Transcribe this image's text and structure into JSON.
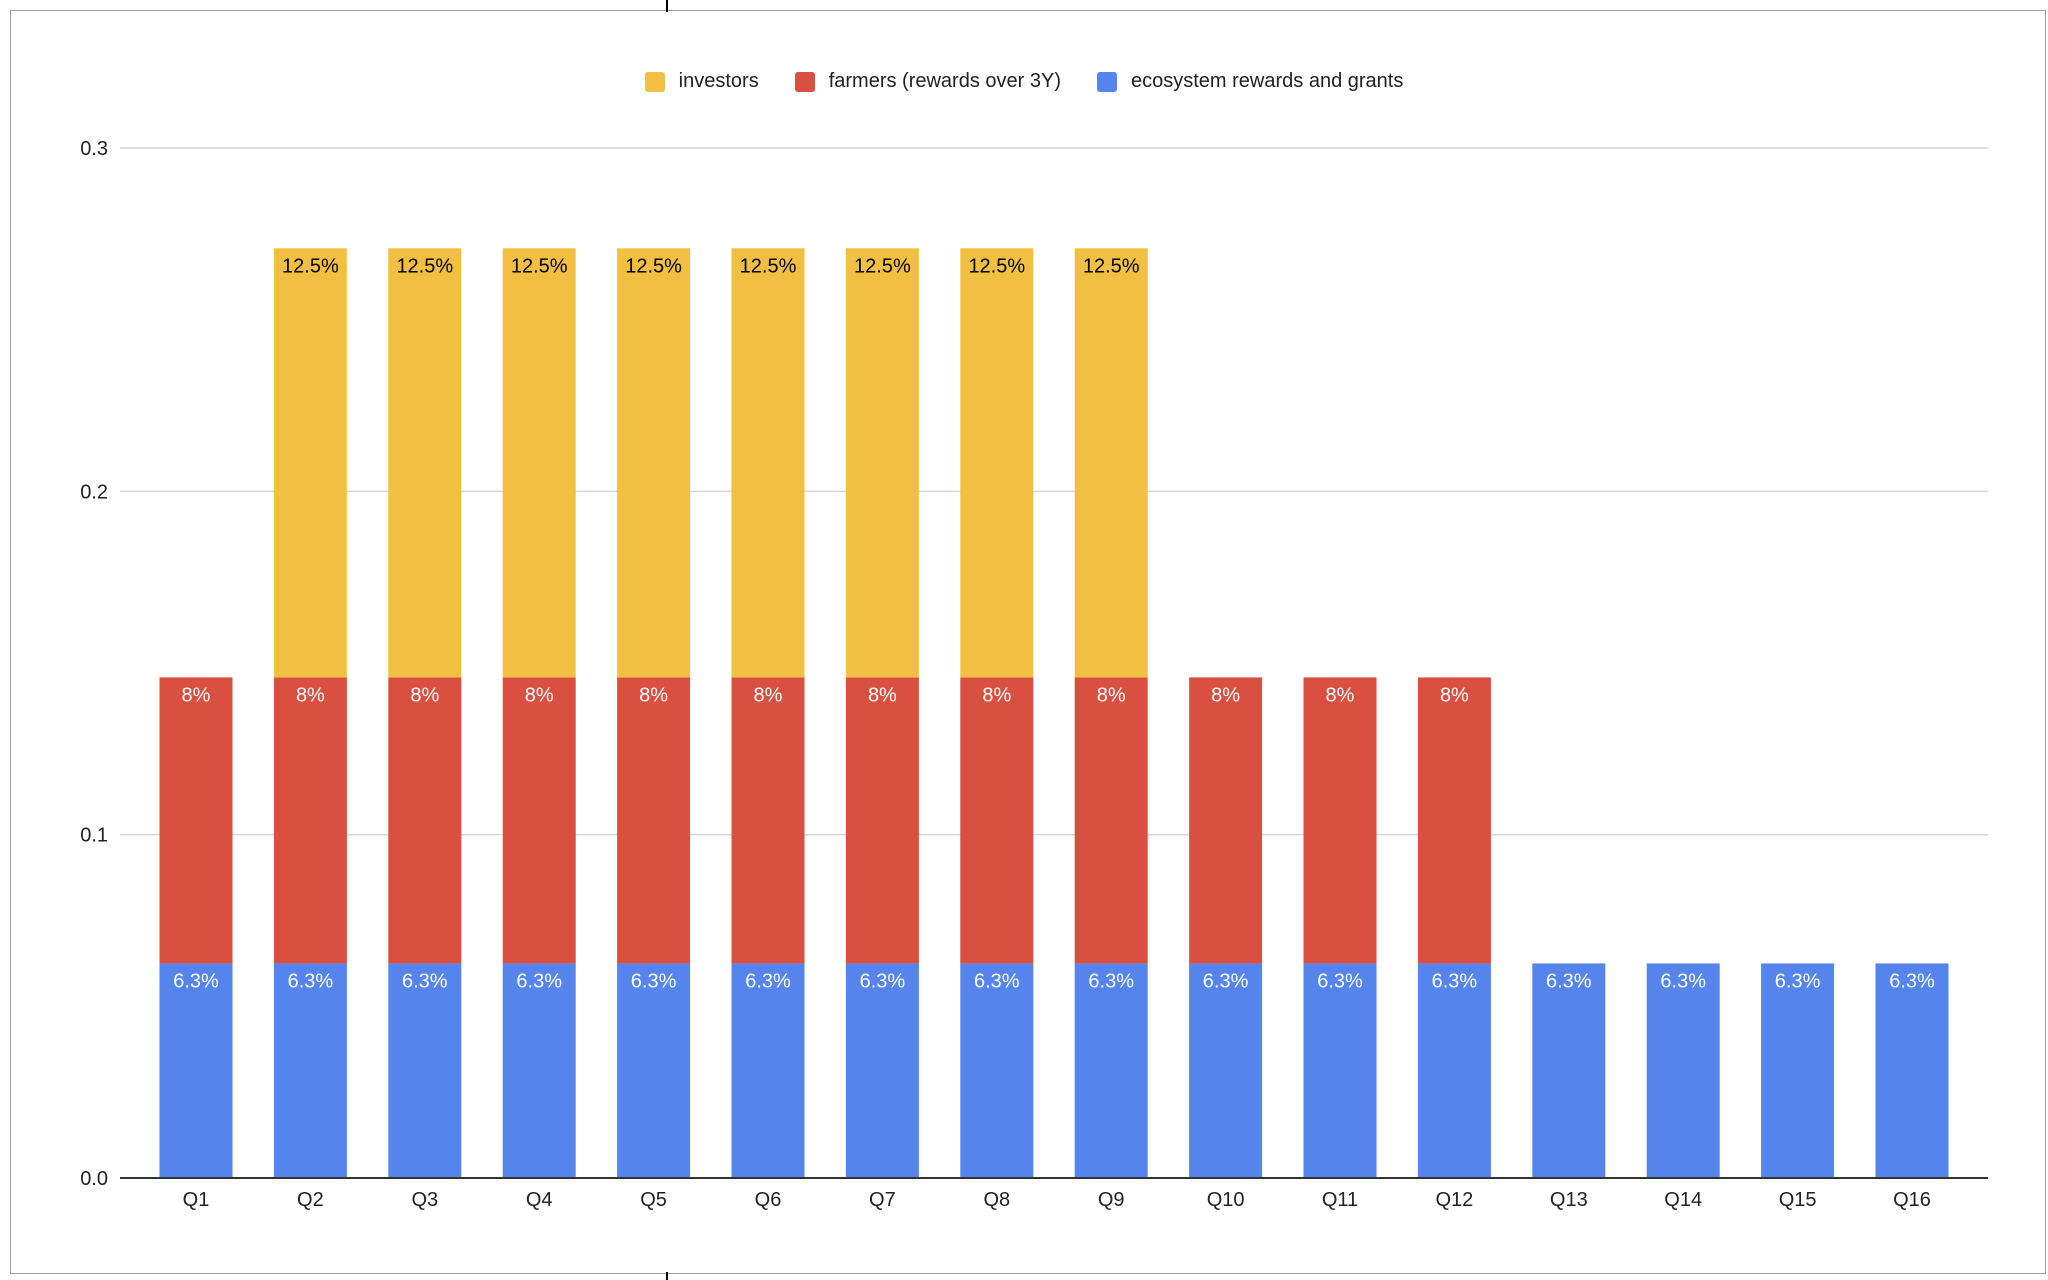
{
  "chart_data": {
    "type": "bar",
    "stacked": true,
    "categories": [
      "Q1",
      "Q2",
      "Q3",
      "Q4",
      "Q5",
      "Q6",
      "Q7",
      "Q8",
      "Q9",
      "Q10",
      "Q11",
      "Q12",
      "Q13",
      "Q14",
      "Q15",
      "Q16"
    ],
    "series": [
      {
        "name": "ecosystem rewards and grants",
        "color": "#5484ec",
        "label_color": "#ffffff",
        "values": [
          0.0625,
          0.0625,
          0.0625,
          0.0625,
          0.0625,
          0.0625,
          0.0625,
          0.0625,
          0.0625,
          0.0625,
          0.0625,
          0.0625,
          0.0625,
          0.0625,
          0.0625,
          0.0625
        ],
        "labels": [
          "6.3%",
          "6.3%",
          "6.3%",
          "6.3%",
          "6.3%",
          "6.3%",
          "6.3%",
          "6.3%",
          "6.3%",
          "6.3%",
          "6.3%",
          "6.3%",
          "6.3%",
          "6.3%",
          "6.3%",
          "6.3%"
        ]
      },
      {
        "name": "farmers (rewards over 3Y)",
        "color": "#d95040",
        "label_color": "#ffffff",
        "values": [
          0.0833,
          0.0833,
          0.0833,
          0.0833,
          0.0833,
          0.0833,
          0.0833,
          0.0833,
          0.0833,
          0.0833,
          0.0833,
          0.0833,
          0,
          0,
          0,
          0
        ],
        "labels": [
          "8%",
          "8%",
          "8%",
          "8%",
          "8%",
          "8%",
          "8%",
          "8%",
          "8%",
          "8%",
          "8%",
          "8%",
          "",
          "",
          "",
          ""
        ]
      },
      {
        "name": "investors",
        "color": "#f1bf42",
        "label_color": "#000000",
        "values": [
          0,
          0.125,
          0.125,
          0.125,
          0.125,
          0.125,
          0.125,
          0.125,
          0.125,
          0,
          0,
          0,
          0,
          0,
          0,
          0
        ],
        "labels": [
          "",
          "12.5%",
          "12.5%",
          "12.5%",
          "12.5%",
          "12.5%",
          "12.5%",
          "12.5%",
          "12.5%",
          "",
          "",
          "",
          "",
          "",
          "",
          ""
        ]
      }
    ],
    "legend_order": [
      2,
      1,
      0
    ],
    "legend_position": "top-center",
    "ylim": [
      0,
      0.3
    ],
    "yticks": [
      "0.0",
      "0.1",
      "0.2",
      "0.3"
    ],
    "ytick_values": [
      0,
      0.1,
      0.2,
      0.3
    ],
    "grid": true,
    "title": "",
    "xlabel": "",
    "ylabel": ""
  }
}
